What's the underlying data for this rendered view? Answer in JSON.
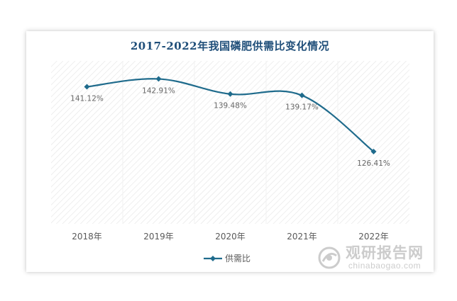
{
  "chart_data": {
    "type": "line",
    "title": "2017-2022年我国磷肥供需比变化情况",
    "categories": [
      "2018年",
      "2019年",
      "2020年",
      "2021年",
      "2022年"
    ],
    "series": [
      {
        "name": "供需比",
        "values": [
          141.12,
          142.91,
          139.48,
          139.17,
          126.41
        ],
        "labels": [
          "141.12%",
          "142.91%",
          "139.48%",
          "139.17%",
          "126.41%"
        ],
        "color": "#1f6b8c"
      }
    ],
    "ylim": [
      110,
      147
    ],
    "grid": false,
    "legend": "bottom"
  },
  "watermark": {
    "main": "观研报告网",
    "sub": "chinabaogao.com"
  }
}
